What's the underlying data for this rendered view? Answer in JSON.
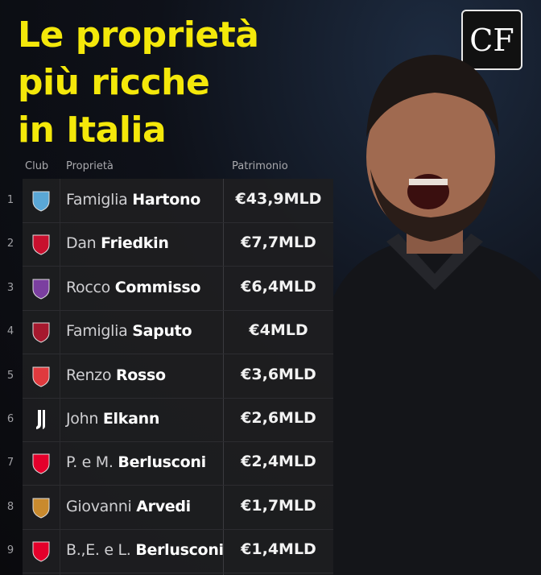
{
  "title": {
    "lines": [
      "Le proprietà",
      "più ricche",
      "in Italia"
    ]
  },
  "brand_logo": "CF",
  "colors": {
    "title": "#f4e80a",
    "background": "#0e1119",
    "table": "#1e1e21"
  },
  "table": {
    "headers": {
      "club": "Club",
      "owner": "Proprietà",
      "wealth": "Patrimonio"
    },
    "rows": [
      {
        "rank": "1",
        "club_crest": "como-crest",
        "crest_color": "#5aa7d6",
        "owner_first": "Famiglia",
        "owner_last": "Hartono",
        "wealth": "€43,9MLD"
      },
      {
        "rank": "2",
        "club_crest": "roma-crest",
        "crest_color": "#c8102e",
        "owner_first": "Dan",
        "owner_last": "Friedkin",
        "wealth": "€7,7MLD"
      },
      {
        "rank": "3",
        "club_crest": "fiorentina-crest",
        "crest_color": "#7b3fa0",
        "owner_first": "Rocco",
        "owner_last": "Commisso",
        "wealth": "€6,4MLD"
      },
      {
        "rank": "4",
        "club_crest": "bologna-crest",
        "crest_color": "#a6192e",
        "owner_first": "Famiglia",
        "owner_last": "Saputo",
        "wealth": "€4MLD"
      },
      {
        "rank": "5",
        "club_crest": "vicenza-crest",
        "crest_color": "#e03a3e",
        "owner_first": "Renzo",
        "owner_last": "Rosso",
        "wealth": "€3,6MLD"
      },
      {
        "rank": "6",
        "club_crest": "juventus-crest",
        "crest_color": "#ffffff",
        "owner_first": "John",
        "owner_last": "Elkann",
        "wealth": "€2,6MLD"
      },
      {
        "rank": "7",
        "club_crest": "monza-crest",
        "crest_color": "#e4002b",
        "owner_first": "P. e M.",
        "owner_last": "Berlusconi",
        "wealth": "€2,4MLD"
      },
      {
        "rank": "8",
        "club_crest": "cremonese-crest",
        "crest_color": "#c98a2e",
        "owner_first": "Giovanni",
        "owner_last": "Arvedi",
        "wealth": "€1,7MLD"
      },
      {
        "rank": "9",
        "club_crest": "monza-crest",
        "crest_color": "#e4002b",
        "owner_first": "B.,E. e L.",
        "owner_last": "Berlusconi",
        "wealth": "€1,4MLD"
      }
    ]
  }
}
